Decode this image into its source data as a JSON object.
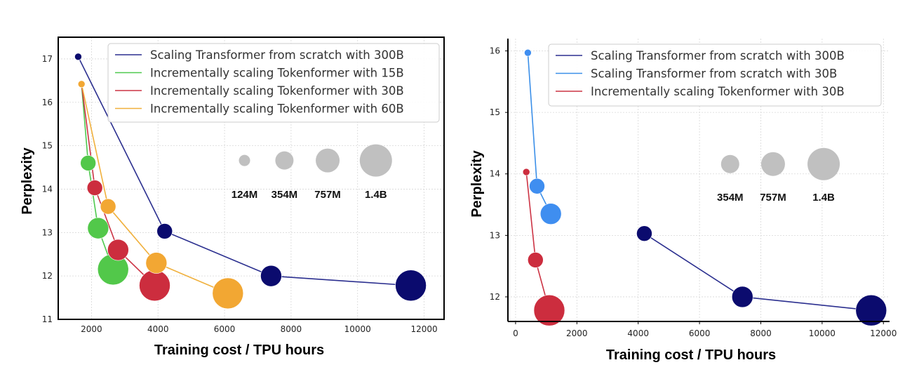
{
  "chart_data": [
    {
      "type": "scatter",
      "xlabel": "Training cost / TPU hours",
      "ylabel": "Perplexity",
      "xlim": [
        1000,
        12600
      ],
      "ylim": [
        11,
        17.5
      ],
      "xticks": [
        2000,
        4000,
        6000,
        8000,
        10000,
        12000
      ],
      "yticks": [
        11,
        12,
        13,
        14,
        15,
        16,
        17
      ],
      "grid": true,
      "legend_position": "top-right",
      "series": [
        {
          "name": "Scaling Transformer from scratch with 300B",
          "color": "#2b2f8f",
          "marker_color": "#0b0b6e",
          "points": [
            {
              "x": 1600,
              "y": 17.05,
              "size": "124M"
            },
            {
              "x": 4200,
              "y": 13.03,
              "size": "354M"
            },
            {
              "x": 7400,
              "y": 12.0,
              "size": "757M"
            },
            {
              "x": 11600,
              "y": 11.78,
              "size": "1.4B"
            }
          ]
        },
        {
          "name": "Incrementally scaling Tokenformer with 15B",
          "color": "#4fc94f",
          "marker_color": "#52c84a",
          "points": [
            {
              "x": 1700,
              "y": 16.42,
              "size": "124M"
            },
            {
              "x": 1900,
              "y": 14.6,
              "size": "354M"
            },
            {
              "x": 2200,
              "y": 13.1,
              "size": "757M"
            },
            {
              "x": 2650,
              "y": 12.15,
              "size": "1.4B"
            }
          ]
        },
        {
          "name": "Incrementally scaling Tokenformer with 30B",
          "color": "#cc3344",
          "marker_color": "#cc2d3e",
          "points": [
            {
              "x": 1700,
              "y": 16.42,
              "size": "124M"
            },
            {
              "x": 2100,
              "y": 14.03,
              "size": "354M"
            },
            {
              "x": 2800,
              "y": 12.6,
              "size": "757M"
            },
            {
              "x": 3900,
              "y": 11.78,
              "size": "1.4B"
            }
          ]
        },
        {
          "name": "Incrementally scaling Tokenformer with 60B",
          "color": "#f0b03c",
          "marker_color": "#f2a733",
          "points": [
            {
              "x": 1700,
              "y": 16.42,
              "size": "124M"
            },
            {
              "x": 2500,
              "y": 13.6,
              "size": "354M"
            },
            {
              "x": 3950,
              "y": 12.3,
              "size": "757M"
            },
            {
              "x": 6100,
              "y": 11.6,
              "size": "1.4B"
            }
          ]
        }
      ],
      "size_legend": [
        {
          "label": "124M",
          "x": 6600
        },
        {
          "label": "354M",
          "x": 7800
        },
        {
          "label": "757M",
          "x": 9100
        },
        {
          "label": "1.4B",
          "x": 10550
        }
      ],
      "size_legend_y": 14.66
    },
    {
      "type": "scatter",
      "xlabel": "Training cost / TPU hours",
      "ylabel": "Perplexity",
      "xlim": [
        -250,
        12200
      ],
      "ylim": [
        11.6,
        16.2
      ],
      "xticks": [
        0,
        2000,
        4000,
        6000,
        8000,
        10000,
        12000
      ],
      "yticks": [
        12,
        13,
        14,
        15,
        16
      ],
      "grid": true,
      "legend_position": "top-right",
      "series": [
        {
          "name": "Scaling Transformer from scratch with 300B",
          "color": "#2b2f8f",
          "marker_color": "#0b0b6e",
          "points": [
            {
              "x": 4200,
              "y": 13.03,
              "size": "354M"
            },
            {
              "x": 7400,
              "y": 12.0,
              "size": "757M"
            },
            {
              "x": 11600,
              "y": 11.78,
              "size": "1.4B"
            }
          ]
        },
        {
          "name": "Scaling Transformer from scratch with 30B",
          "color": "#3b8fe8",
          "marker_color": "#3f8ef0",
          "points": [
            {
              "x": 400,
              "y": 15.97,
              "size": "124M"
            },
            {
              "x": 700,
              "y": 13.8,
              "size": "354M"
            },
            {
              "x": 1150,
              "y": 13.35,
              "size": "757M"
            }
          ]
        },
        {
          "name": "Incrementally scaling Tokenformer with 30B",
          "color": "#cc3344",
          "marker_color": "#cc2d3e",
          "points": [
            {
              "x": 350,
              "y": 14.03,
              "size": "124M"
            },
            {
              "x": 650,
              "y": 12.6,
              "size": "354M"
            },
            {
              "x": 1100,
              "y": 11.78,
              "size": "1.4B"
            }
          ]
        }
      ],
      "size_legend": [
        {
          "label": "354M",
          "x": 7000
        },
        {
          "label": "757M",
          "x": 8400
        },
        {
          "label": "1.4B",
          "x": 10050
        }
      ],
      "size_legend_y": 14.16
    }
  ]
}
